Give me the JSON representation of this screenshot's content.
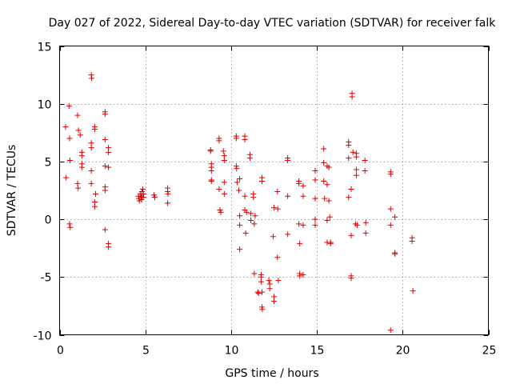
{
  "chart_data": {
    "type": "scatter",
    "title": "Day 027 of 2022, Sidereal Day-to-day VTEC variation (SDTVAR) for receiver falk",
    "xlabel": "GPS time / hours",
    "ylabel": "SDTVAR / TECUs",
    "xlim": [
      0,
      25
    ],
    "ylim": [
      -10,
      15
    ],
    "xticks": [
      0,
      5,
      10,
      15,
      20,
      25
    ],
    "yticks": [
      -10,
      -5,
      0,
      5,
      10,
      15
    ],
    "xtick_labels": [
      "0",
      "5",
      "10",
      "15",
      "20",
      "25"
    ],
    "ytick_labels": [
      "-10",
      "-5",
      "0",
      "5",
      "10",
      "15"
    ],
    "grid": true,
    "marker": "plus",
    "color": "#e00000",
    "series": [
      {
        "name": "falk",
        "points": [
          [
            0.35,
            8.0
          ],
          [
            0.38,
            3.6
          ],
          [
            0.55,
            9.8
          ],
          [
            0.58,
            7.0
          ],
          [
            0.6,
            5.1
          ],
          [
            0.58,
            -0.4
          ],
          [
            0.62,
            -0.7
          ],
          [
            1.05,
            9.0
          ],
          [
            1.1,
            7.7
          ],
          [
            1.2,
            7.3
          ],
          [
            1.05,
            3.1
          ],
          [
            1.08,
            2.7
          ],
          [
            1.3,
            5.8
          ],
          [
            1.3,
            5.5
          ],
          [
            1.3,
            4.8
          ],
          [
            1.3,
            4.5
          ],
          [
            1.85,
            12.5
          ],
          [
            1.87,
            12.2
          ],
          [
            1.85,
            6.6
          ],
          [
            1.85,
            6.2
          ],
          [
            1.85,
            4.2
          ],
          [
            1.85,
            3.1
          ],
          [
            2.05,
            8.0
          ],
          [
            2.05,
            7.8
          ],
          [
            2.1,
            2.2
          ],
          [
            2.05,
            1.5
          ],
          [
            2.05,
            1.1
          ],
          [
            2.65,
            9.3
          ],
          [
            2.65,
            9.1
          ],
          [
            2.65,
            6.9
          ],
          [
            2.65,
            4.6
          ],
          [
            2.65,
            2.8
          ],
          [
            2.65,
            2.5
          ],
          [
            2.65,
            -0.9
          ],
          [
            2.85,
            6.2
          ],
          [
            2.85,
            5.8
          ],
          [
            2.85,
            4.5
          ],
          [
            2.85,
            -2.1
          ],
          [
            2.85,
            -2.4
          ],
          [
            4.6,
            2.0
          ],
          [
            4.62,
            1.8
          ],
          [
            4.65,
            1.6
          ],
          [
            4.7,
            2.2
          ],
          [
            4.75,
            2.0
          ],
          [
            4.78,
            1.7
          ],
          [
            4.8,
            2.4
          ],
          [
            4.85,
            2.6
          ],
          [
            4.88,
            1.9
          ],
          [
            4.9,
            2.2
          ],
          [
            4.8,
            1.9
          ],
          [
            5.5,
            2.1
          ],
          [
            5.55,
            1.9
          ],
          [
            6.3,
            2.7
          ],
          [
            6.3,
            2.4
          ],
          [
            6.32,
            2.2
          ],
          [
            6.3,
            1.4
          ],
          [
            8.8,
            6.0
          ],
          [
            8.8,
            5.9
          ],
          [
            8.85,
            4.8
          ],
          [
            8.85,
            4.5
          ],
          [
            8.85,
            4.2
          ],
          [
            8.85,
            3.4
          ],
          [
            8.85,
            3.3
          ],
          [
            9.3,
            7.0
          ],
          [
            9.3,
            6.8
          ],
          [
            9.3,
            2.6
          ],
          [
            9.35,
            0.8
          ],
          [
            9.4,
            0.6
          ],
          [
            9.55,
            5.9
          ],
          [
            9.6,
            5.5
          ],
          [
            9.6,
            5.1
          ],
          [
            9.6,
            2.2
          ],
          [
            9.6,
            3.2
          ],
          [
            10.3,
            7.2
          ],
          [
            10.3,
            7.0
          ],
          [
            10.3,
            4.6
          ],
          [
            10.32,
            4.4
          ],
          [
            10.35,
            3.2
          ],
          [
            10.5,
            3.5
          ],
          [
            10.45,
            2.5
          ],
          [
            10.5,
            0.3
          ],
          [
            10.5,
            -0.5
          ],
          [
            10.5,
            -2.6
          ],
          [
            10.8,
            7.2
          ],
          [
            10.8,
            6.9
          ],
          [
            10.8,
            2.0
          ],
          [
            10.8,
            0.8
          ],
          [
            10.9,
            0.6
          ],
          [
            10.85,
            -1.2
          ],
          [
            11.1,
            5.6
          ],
          [
            11.1,
            5.3
          ],
          [
            11.15,
            0.5
          ],
          [
            11.15,
            -0.1
          ],
          [
            11.3,
            2.2
          ],
          [
            11.3,
            1.9
          ],
          [
            11.35,
            -0.4
          ],
          [
            11.4,
            0.3
          ],
          [
            11.35,
            -4.7
          ],
          [
            11.55,
            -6.3
          ],
          [
            11.6,
            -6.4
          ],
          [
            11.8,
            3.6
          ],
          [
            11.8,
            3.3
          ],
          [
            11.75,
            -4.8
          ],
          [
            11.75,
            -5.0
          ],
          [
            11.75,
            -5.4
          ],
          [
            11.8,
            -6.3
          ],
          [
            11.8,
            -7.6
          ],
          [
            11.82,
            -7.8
          ],
          [
            12.2,
            -5.3
          ],
          [
            12.25,
            -5.6
          ],
          [
            12.25,
            -6.0
          ],
          [
            12.5,
            -6.7
          ],
          [
            12.5,
            -7.1
          ],
          [
            12.45,
            -1.5
          ],
          [
            12.5,
            1.0
          ],
          [
            12.7,
            2.4
          ],
          [
            12.72,
            0.9
          ],
          [
            12.7,
            -3.3
          ],
          [
            12.75,
            -5.3
          ],
          [
            13.3,
            5.3
          ],
          [
            13.3,
            5.1
          ],
          [
            13.3,
            2.0
          ],
          [
            13.3,
            -1.3
          ],
          [
            13.95,
            3.3
          ],
          [
            13.95,
            3.1
          ],
          [
            13.95,
            -0.4
          ],
          [
            14.0,
            -2.1
          ],
          [
            14.0,
            -4.7
          ],
          [
            14.0,
            -4.9
          ],
          [
            14.2,
            2.9
          ],
          [
            14.2,
            2.0
          ],
          [
            14.2,
            -0.5
          ],
          [
            14.2,
            -4.8
          ],
          [
            14.9,
            4.2
          ],
          [
            14.9,
            3.4
          ],
          [
            14.9,
            1.8
          ],
          [
            14.9,
            0.0
          ],
          [
            14.9,
            -0.5
          ],
          [
            15.4,
            6.1
          ],
          [
            15.4,
            4.9
          ],
          [
            15.4,
            3.3
          ],
          [
            15.45,
            1.8
          ],
          [
            15.6,
            4.6
          ],
          [
            15.6,
            3.0
          ],
          [
            15.6,
            -0.1
          ],
          [
            15.7,
            4.5
          ],
          [
            15.7,
            1.6
          ],
          [
            15.75,
            0.2
          ],
          [
            15.8,
            -2.0
          ],
          [
            15.8,
            -2.1
          ],
          [
            15.6,
            -2.0
          ],
          [
            16.85,
            6.7
          ],
          [
            16.85,
            6.4
          ],
          [
            16.85,
            5.3
          ],
          [
            16.85,
            1.9
          ],
          [
            17.0,
            2.6
          ],
          [
            17.05,
            10.9
          ],
          [
            17.05,
            10.6
          ],
          [
            17.0,
            -1.4
          ],
          [
            17.0,
            -4.9
          ],
          [
            17.0,
            -5.1
          ],
          [
            17.1,
            5.8
          ],
          [
            17.3,
            5.7
          ],
          [
            17.3,
            5.4
          ],
          [
            17.3,
            4.3
          ],
          [
            17.3,
            3.8
          ],
          [
            17.25,
            -0.4
          ],
          [
            17.35,
            -0.5
          ],
          [
            17.8,
            5.1
          ],
          [
            17.8,
            4.2
          ],
          [
            17.85,
            -0.3
          ],
          [
            17.85,
            -1.2
          ],
          [
            19.3,
            4.1
          ],
          [
            19.3,
            3.9
          ],
          [
            19.3,
            0.9
          ],
          [
            19.3,
            -0.5
          ],
          [
            19.3,
            -9.6
          ],
          [
            19.55,
            0.2
          ],
          [
            19.55,
            -2.9
          ],
          [
            19.55,
            -3.0
          ],
          [
            20.55,
            -1.6
          ],
          [
            20.55,
            -1.9
          ],
          [
            20.6,
            -6.2
          ]
        ]
      }
    ]
  }
}
